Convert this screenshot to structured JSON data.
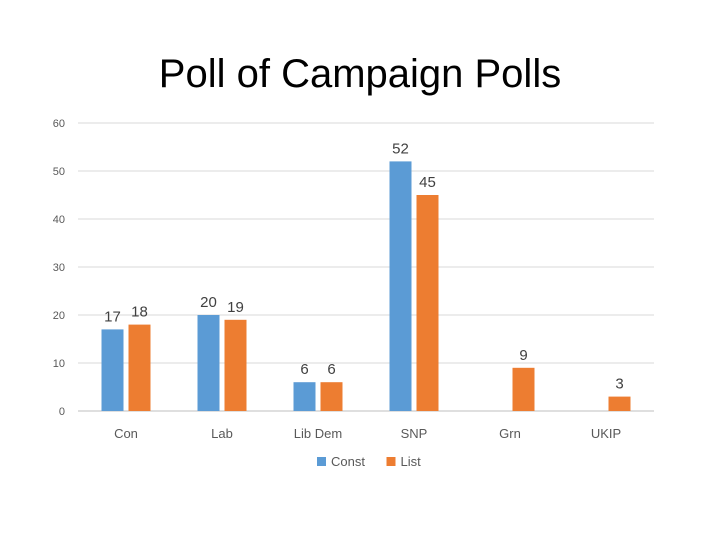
{
  "chart_data": {
    "type": "bar",
    "title": "Poll of Campaign Polls",
    "categories": [
      "Con",
      "Lab",
      "Lib Dem",
      "SNP",
      "Grn",
      "UKIP"
    ],
    "series": [
      {
        "name": "Const",
        "color": "#5B9BD5",
        "values": [
          17,
          20,
          6,
          52,
          null,
          null
        ]
      },
      {
        "name": "List",
        "color": "#ED7D31",
        "values": [
          18,
          19,
          6,
          45,
          9,
          3
        ]
      }
    ],
    "ylim": [
      0,
      60
    ],
    "yticks": [
      0,
      10,
      20,
      30,
      40,
      50,
      60
    ],
    "grid": true,
    "legend": "bottom"
  }
}
